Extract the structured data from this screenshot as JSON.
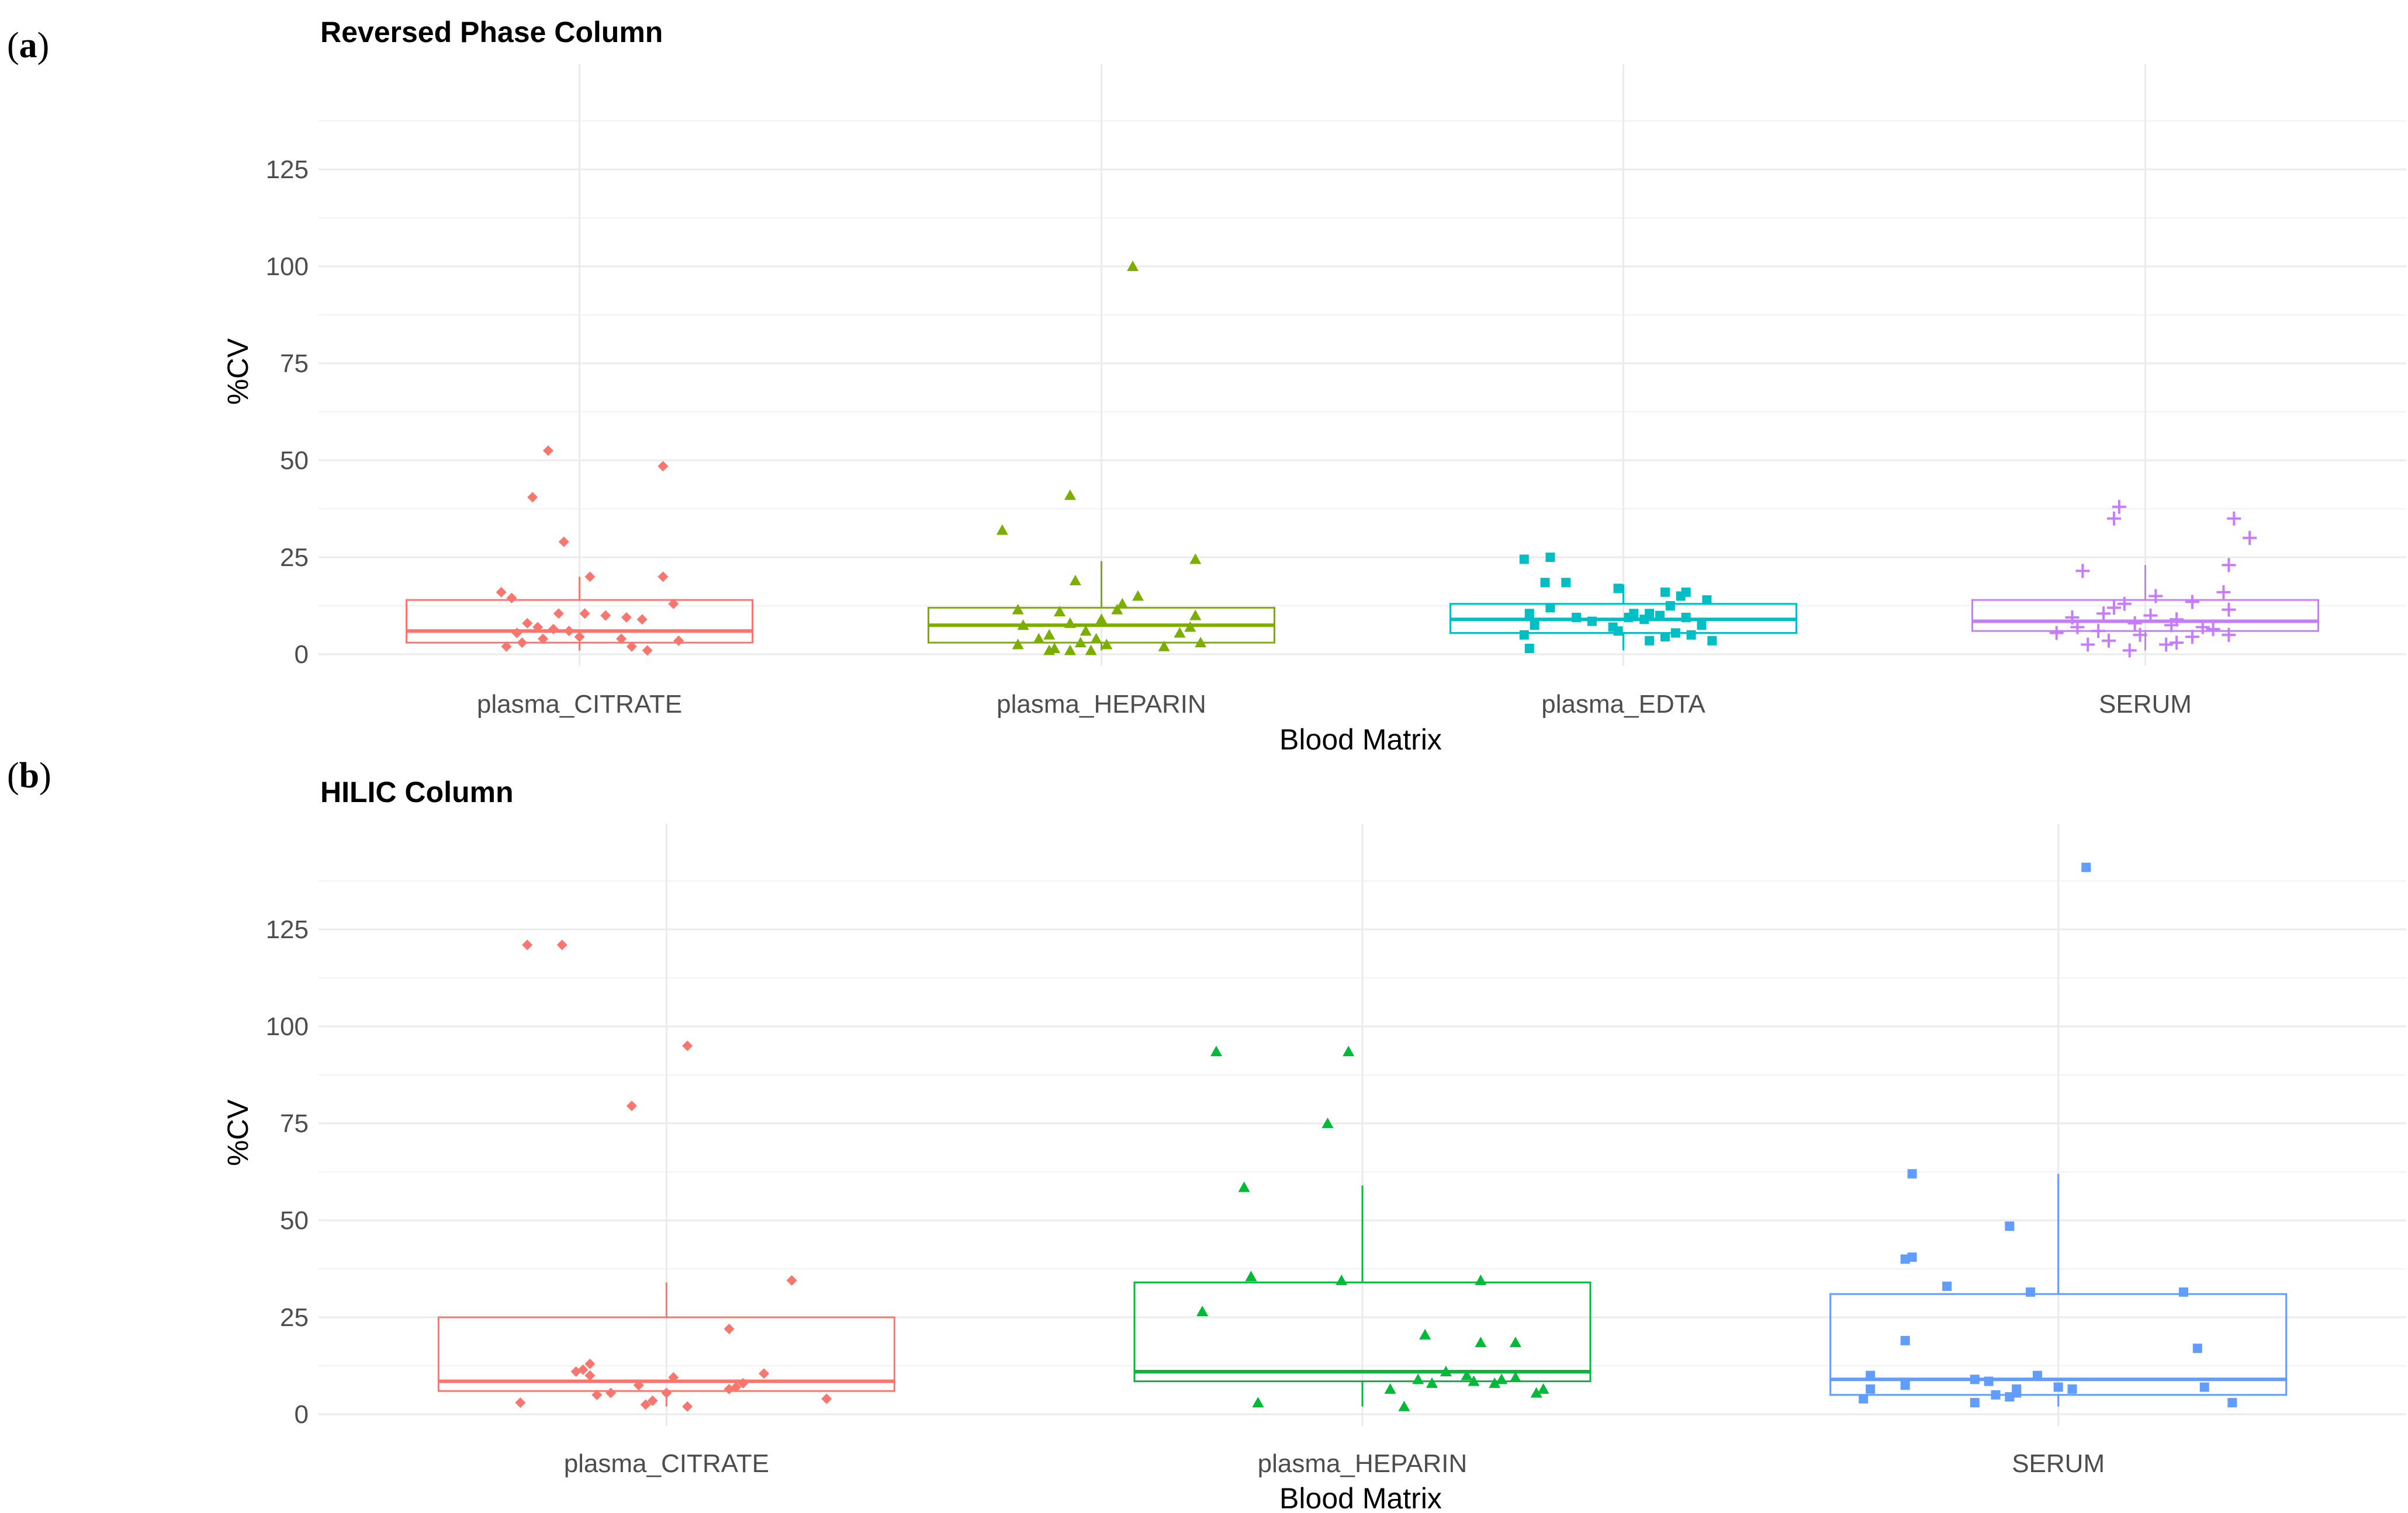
{
  "panel_labels": {
    "a": {
      "open": "(",
      "letter": "a",
      "close": ")"
    },
    "b": {
      "open": "(",
      "letter": "b",
      "close": ")"
    }
  },
  "chart_data": [
    {
      "type": "box",
      "title": "Reversed Phase Column",
      "xlabel": "Blood Matrix",
      "ylabel": "%CV",
      "ylim": [
        0,
        150
      ],
      "yticks": [
        0,
        25,
        50,
        75,
        100,
        125
      ],
      "grid": true,
      "categories": [
        "plasma_CITRATE",
        "plasma_HEPARIN",
        "plasma_EDTA",
        "SERUM"
      ],
      "series": [
        {
          "color": "#F8766D",
          "shape": "diamond",
          "box": {
            "min": 1,
            "q1": 3,
            "median": 6,
            "q3": 14,
            "max": 20
          },
          "points": [
            [
              -0.06,
              52.5
            ],
            [
              -0.09,
              40.5
            ],
            [
              0.16,
              48.5
            ],
            [
              -0.03,
              29
            ],
            [
              0.16,
              20
            ],
            [
              0.02,
              20
            ],
            [
              -0.15,
              16
            ],
            [
              -0.13,
              14.5
            ],
            [
              0.18,
              13
            ],
            [
              -0.04,
              10.5
            ],
            [
              0.01,
              10.5
            ],
            [
              0.05,
              10
            ],
            [
              0.09,
              9.5
            ],
            [
              0.12,
              9
            ],
            [
              -0.1,
              8
            ],
            [
              -0.08,
              7
            ],
            [
              -0.05,
              6.5
            ],
            [
              -0.02,
              6
            ],
            [
              -0.12,
              5.5
            ],
            [
              0.0,
              4.5
            ],
            [
              -0.07,
              4
            ],
            [
              0.08,
              4
            ],
            [
              -0.11,
              3
            ],
            [
              0.19,
              3.5
            ],
            [
              -0.14,
              2
            ],
            [
              0.1,
              2
            ],
            [
              0.13,
              1
            ]
          ]
        },
        {
          "color": "#7CAE00",
          "shape": "triangle",
          "box": {
            "min": 1,
            "q1": 3,
            "median": 7.5,
            "q3": 12,
            "max": 24
          },
          "points": [
            [
              0.06,
              100
            ],
            [
              -0.06,
              41
            ],
            [
              -0.19,
              32
            ],
            [
              0.18,
              24.5
            ],
            [
              -0.05,
              19
            ],
            [
              0.07,
              15
            ],
            [
              0.04,
              13
            ],
            [
              0.03,
              11.5
            ],
            [
              -0.16,
              11.5
            ],
            [
              -0.08,
              11
            ],
            [
              0.18,
              10
            ],
            [
              0.0,
              9
            ],
            [
              -0.06,
              8
            ],
            [
              -0.15,
              7.5
            ],
            [
              0.17,
              7
            ],
            [
              -0.03,
              6
            ],
            [
              0.15,
              5.5
            ],
            [
              -0.1,
              5
            ],
            [
              -0.12,
              4
            ],
            [
              -0.01,
              4
            ],
            [
              -0.04,
              3
            ],
            [
              0.19,
              3
            ],
            [
              -0.16,
              2.5
            ],
            [
              0.01,
              2.5
            ],
            [
              0.12,
              2
            ],
            [
              -0.09,
              1.5
            ],
            [
              -0.06,
              1
            ],
            [
              -0.1,
              1
            ],
            [
              -0.02,
              1
            ]
          ]
        },
        {
          "color": "#00BFC4",
          "shape": "square",
          "box": {
            "min": 1,
            "q1": 5.5,
            "median": 9,
            "q3": 13,
            "max": 18
          },
          "points": [
            [
              -0.19,
              24.5
            ],
            [
              -0.14,
              25
            ],
            [
              -0.15,
              18.5
            ],
            [
              -0.11,
              18.5
            ],
            [
              -0.01,
              17
            ],
            [
              0.08,
              16
            ],
            [
              0.12,
              16
            ],
            [
              0.11,
              15
            ],
            [
              0.16,
              14
            ],
            [
              0.09,
              12.5
            ],
            [
              -0.14,
              12
            ],
            [
              -0.18,
              10.5
            ],
            [
              0.02,
              10.5
            ],
            [
              0.05,
              10.5
            ],
            [
              0.07,
              10
            ],
            [
              -0.09,
              9.5
            ],
            [
              0.01,
              9.5
            ],
            [
              0.12,
              9.5
            ],
            [
              0.04,
              9
            ],
            [
              -0.06,
              8.5
            ],
            [
              -0.17,
              7.5
            ],
            [
              0.15,
              7.5
            ],
            [
              -0.02,
              7
            ],
            [
              -0.01,
              6
            ],
            [
              0.1,
              5.5
            ],
            [
              0.13,
              5
            ],
            [
              0.08,
              4.5
            ],
            [
              -0.19,
              5
            ],
            [
              0.05,
              3.5
            ],
            [
              0.17,
              3.5
            ],
            [
              -0.18,
              1.5
            ]
          ]
        },
        {
          "color": "#C77CFF",
          "shape": "plus",
          "box": {
            "min": 1,
            "q1": 6,
            "median": 8.5,
            "q3": 14,
            "max": 23
          },
          "points": [
            [
              -0.05,
              38
            ],
            [
              -0.06,
              35
            ],
            [
              0.17,
              35
            ],
            [
              0.2,
              30
            ],
            [
              0.16,
              23
            ],
            [
              -0.12,
              21.5
            ],
            [
              0.15,
              16
            ],
            [
              0.02,
              15
            ],
            [
              0.09,
              13.5
            ],
            [
              -0.04,
              13
            ],
            [
              -0.06,
              12
            ],
            [
              0.16,
              11.5
            ],
            [
              -0.08,
              10.5
            ],
            [
              0.01,
              10
            ],
            [
              -0.14,
              9.5
            ],
            [
              0.06,
              9
            ],
            [
              -0.02,
              8
            ],
            [
              0.05,
              7.5
            ],
            [
              0.11,
              7
            ],
            [
              -0.13,
              7
            ],
            [
              0.13,
              6.5
            ],
            [
              -0.09,
              6
            ],
            [
              -0.17,
              5.5
            ],
            [
              -0.01,
              5
            ],
            [
              0.16,
              5
            ],
            [
              0.09,
              4.5
            ],
            [
              -0.07,
              3.5
            ],
            [
              0.06,
              3
            ],
            [
              -0.11,
              2.5
            ],
            [
              0.04,
              2.5
            ],
            [
              -0.03,
              1
            ]
          ]
        }
      ]
    },
    {
      "type": "box",
      "title": "HILIC Column",
      "xlabel": "Blood Matrix",
      "ylabel": "%CV",
      "ylim": [
        0,
        150
      ],
      "yticks": [
        0,
        25,
        50,
        75,
        100,
        125
      ],
      "grid": true,
      "categories": [
        "plasma_CITRATE",
        "plasma_HEPARIN",
        "SERUM"
      ],
      "series": [
        {
          "color": "#F8766D",
          "shape": "diamond",
          "box": {
            "min": 2,
            "q1": 6,
            "median": 8.5,
            "q3": 25,
            "max": 34
          },
          "points": [
            [
              -0.2,
              121
            ],
            [
              -0.15,
              121
            ],
            [
              0.03,
              95
            ],
            [
              -0.05,
              79.5
            ],
            [
              0.18,
              34.5
            ],
            [
              0.09,
              22
            ],
            [
              -0.11,
              13
            ],
            [
              -0.12,
              11.5
            ],
            [
              -0.13,
              11
            ],
            [
              -0.11,
              10
            ],
            [
              0.14,
              10.5
            ],
            [
              0.01,
              9.5
            ],
            [
              0.11,
              8
            ],
            [
              -0.04,
              7.5
            ],
            [
              0.1,
              7
            ],
            [
              0.09,
              6.5
            ],
            [
              -0.08,
              5.5
            ],
            [
              -0.1,
              5
            ],
            [
              0.0,
              5.5
            ],
            [
              0.23,
              4
            ],
            [
              -0.02,
              3.5
            ],
            [
              -0.21,
              3
            ],
            [
              -0.03,
              2.5
            ],
            [
              0.03,
              2
            ]
          ]
        },
        {
          "color": "#00BA38",
          "shape": "triangle",
          "box": {
            "min": 2,
            "q1": 8.5,
            "median": 11,
            "q3": 34,
            "max": 59
          },
          "points": [
            [
              -0.21,
              93.5
            ],
            [
              -0.02,
              93.5
            ],
            [
              -0.05,
              75
            ],
            [
              -0.17,
              58.5
            ],
            [
              -0.16,
              35.5
            ],
            [
              -0.03,
              34.5
            ],
            [
              0.17,
              34.5
            ],
            [
              -0.23,
              26.5
            ],
            [
              0.09,
              20.5
            ],
            [
              0.17,
              18.5
            ],
            [
              0.22,
              18.5
            ],
            [
              0.12,
              11
            ],
            [
              0.15,
              10
            ],
            [
              0.08,
              9
            ],
            [
              0.22,
              9.5
            ],
            [
              0.2,
              9
            ],
            [
              0.19,
              8
            ],
            [
              0.1,
              8
            ],
            [
              0.16,
              8.5
            ],
            [
              0.04,
              6.5
            ],
            [
              0.26,
              6.5
            ],
            [
              0.25,
              5.5
            ],
            [
              -0.15,
              3
            ],
            [
              0.06,
              2
            ]
          ]
        },
        {
          "color": "#619CFF",
          "shape": "square",
          "box": {
            "min": 2,
            "q1": 5,
            "median": 9,
            "q3": 31,
            "max": 62
          },
          "points": [
            [
              0.04,
              141
            ],
            [
              -0.21,
              62
            ],
            [
              -0.07,
              48.5
            ],
            [
              -0.21,
              40.5
            ],
            [
              -0.22,
              40
            ],
            [
              -0.16,
              33
            ],
            [
              -0.04,
              31.5
            ],
            [
              0.18,
              31.5
            ],
            [
              -0.22,
              19
            ],
            [
              0.2,
              17
            ],
            [
              -0.27,
              10
            ],
            [
              -0.12,
              9
            ],
            [
              -0.1,
              8.5
            ],
            [
              -0.03,
              10
            ],
            [
              -0.22,
              7.5
            ],
            [
              0.0,
              7
            ],
            [
              -0.27,
              6.5
            ],
            [
              -0.06,
              6.5
            ],
            [
              0.02,
              6.5
            ],
            [
              0.21,
              7
            ],
            [
              -0.06,
              5.5
            ],
            [
              -0.28,
              4
            ],
            [
              -0.09,
              5
            ],
            [
              -0.07,
              4.5
            ],
            [
              0.25,
              3
            ],
            [
              -0.12,
              3
            ]
          ]
        }
      ]
    }
  ]
}
